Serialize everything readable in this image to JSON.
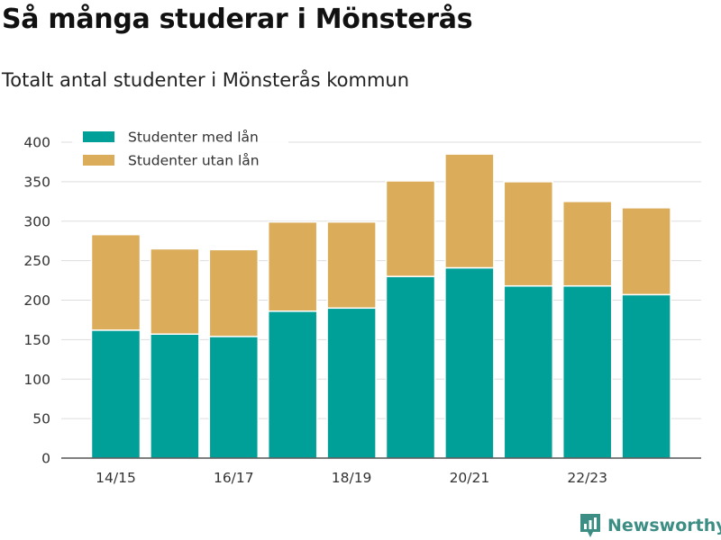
{
  "header": {
    "title": "Så många studerar i Mönsterås",
    "subtitle": "Totalt antal studenter i Mönsterås kommun"
  },
  "branding": {
    "name": "Newsworthy",
    "icon": "newsworthy-logo-icon",
    "color": "#3c8d84"
  },
  "chart_data": {
    "type": "bar",
    "stacked": true,
    "categories": [
      "14/15",
      "15/16",
      "16/17",
      "17/18",
      "18/19",
      "19/20",
      "20/21",
      "21/22",
      "22/23",
      "23/24"
    ],
    "tick_labels": [
      "14/15",
      "16/17",
      "18/19",
      "20/21",
      "22/23"
    ],
    "series": [
      {
        "name": "Studenter med lån",
        "color": "#00a098",
        "values": [
          162,
          157,
          154,
          186,
          190,
          230,
          241,
          218,
          218,
          207
        ]
      },
      {
        "name": "Studenter utan lån",
        "color": "#dbad5b",
        "values": [
          121,
          108,
          110,
          113,
          109,
          121,
          144,
          132,
          107,
          110
        ]
      }
    ],
    "yticks": [
      0,
      50,
      100,
      150,
      200,
      250,
      300,
      350,
      400
    ],
    "ylim": [
      0,
      400
    ],
    "grid": true,
    "legend_position": "top-left"
  }
}
